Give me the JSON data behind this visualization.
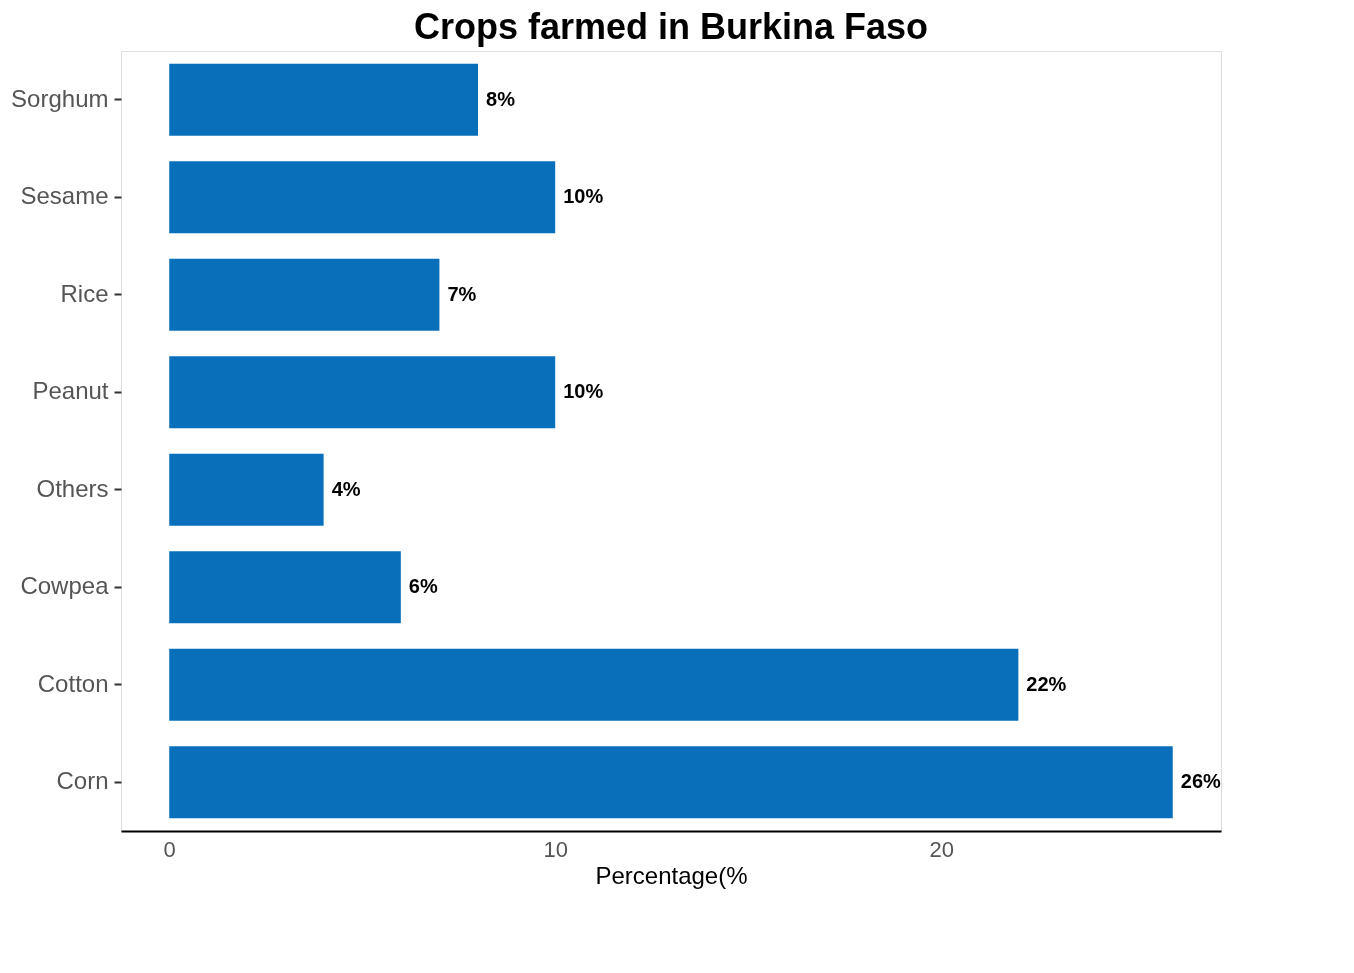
{
  "chart_data": {
    "type": "bar",
    "orientation": "horizontal",
    "title": "Crops farmed in Burkina Faso",
    "xlabel": "Percentage(%",
    "categories": [
      "Sorghum",
      "Sesame",
      "Rice",
      "Peanut",
      "Others",
      "Cowpea",
      "Cotton",
      "Corn"
    ],
    "values": [
      8,
      10,
      7,
      10,
      4,
      6,
      22,
      26
    ],
    "value_labels": [
      "8%",
      "10%",
      "7%",
      "10%",
      "4%",
      "6%",
      "22%",
      "26%"
    ],
    "color": "#0a6fba",
    "xlim": [
      -1.25,
      27.25
    ],
    "xticks": [
      0,
      10,
      20
    ],
    "grid": false
  }
}
